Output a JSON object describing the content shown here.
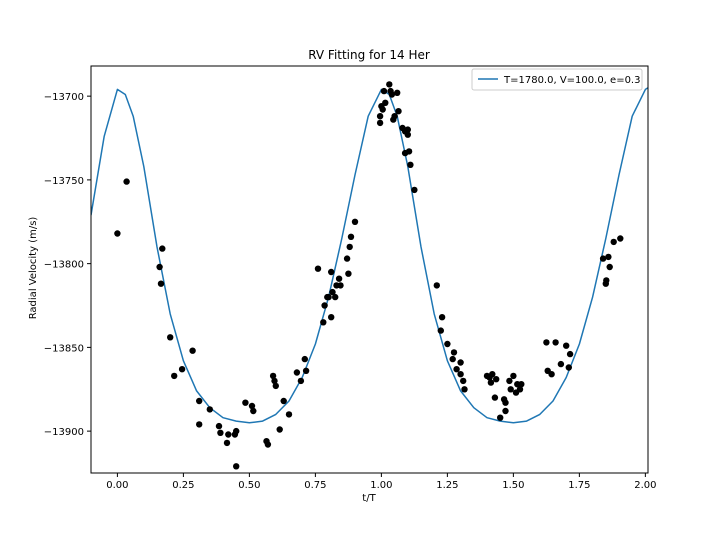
{
  "chart_data": {
    "type": "scatter",
    "title": "RV Fitting for 14 Her",
    "xlabel": "t/T",
    "ylabel": "Radial Velocity (m/s)",
    "xlim": [
      -0.1,
      2.01
    ],
    "ylim": [
      -13925,
      -13682
    ],
    "grid": false,
    "legend_position": "top-right",
    "x_ticks": [
      0.0,
      0.25,
      0.5,
      0.75,
      1.0,
      1.25,
      1.5,
      1.75,
      2.0
    ],
    "x_tick_labels": [
      "0.00",
      "0.25",
      "0.50",
      "0.75",
      "1.00",
      "1.25",
      "1.50",
      "1.75",
      "2.00"
    ],
    "y_ticks": [
      -13900,
      -13850,
      -13800,
      -13750,
      -13700
    ],
    "y_tick_labels": [
      "−13900",
      "−13850",
      "−13800",
      "−13750",
      "−13700"
    ],
    "fit_series": {
      "name": "T=1780.0, V=100.0, e=0.3",
      "color": "#1f77b4",
      "points": [
        [
          -0.1,
          -13771
        ],
        [
          -0.05,
          -13724
        ],
        [
          0.0,
          -13696
        ],
        [
          0.03,
          -13699
        ],
        [
          0.06,
          -13712
        ],
        [
          0.1,
          -13742
        ],
        [
          0.15,
          -13790
        ],
        [
          0.2,
          -13830
        ],
        [
          0.25,
          -13858
        ],
        [
          0.3,
          -13876
        ],
        [
          0.35,
          -13886
        ],
        [
          0.4,
          -13892
        ],
        [
          0.45,
          -13894
        ],
        [
          0.5,
          -13895
        ],
        [
          0.55,
          -13894
        ],
        [
          0.6,
          -13890
        ],
        [
          0.65,
          -13882
        ],
        [
          0.7,
          -13868
        ],
        [
          0.75,
          -13848
        ],
        [
          0.8,
          -13820
        ],
        [
          0.85,
          -13785
        ],
        [
          0.9,
          -13747
        ],
        [
          0.95,
          -13712
        ],
        [
          1.0,
          -13696
        ],
        [
          1.03,
          -13699
        ],
        [
          1.06,
          -13712
        ],
        [
          1.1,
          -13742
        ],
        [
          1.15,
          -13790
        ],
        [
          1.2,
          -13830
        ],
        [
          1.25,
          -13858
        ],
        [
          1.3,
          -13876
        ],
        [
          1.35,
          -13886
        ],
        [
          1.4,
          -13892
        ],
        [
          1.45,
          -13894
        ],
        [
          1.5,
          -13895
        ],
        [
          1.55,
          -13894
        ],
        [
          1.6,
          -13890
        ],
        [
          1.65,
          -13882
        ],
        [
          1.7,
          -13868
        ],
        [
          1.75,
          -13848
        ],
        [
          1.8,
          -13820
        ],
        [
          1.85,
          -13785
        ],
        [
          1.9,
          -13747
        ],
        [
          1.95,
          -13712
        ],
        [
          2.0,
          -13696
        ],
        [
          2.01,
          -13695
        ]
      ]
    },
    "observations": {
      "color": "#000000",
      "points": [
        [
          0.0,
          -13782
        ],
        [
          0.035,
          -13751
        ],
        [
          0.16,
          -13802
        ],
        [
          0.165,
          -13812
        ],
        [
          0.17,
          -13791
        ],
        [
          0.2,
          -13844
        ],
        [
          0.215,
          -13867
        ],
        [
          0.245,
          -13863
        ],
        [
          0.285,
          -13852
        ],
        [
          0.31,
          -13882
        ],
        [
          0.31,
          -13896
        ],
        [
          0.35,
          -13887
        ],
        [
          0.385,
          -13897
        ],
        [
          0.39,
          -13901
        ],
        [
          0.415,
          -13907
        ],
        [
          0.42,
          -13902
        ],
        [
          0.445,
          -13902
        ],
        [
          0.45,
          -13900
        ],
        [
          0.45,
          -13921
        ],
        [
          0.485,
          -13883
        ],
        [
          0.51,
          -13885
        ],
        [
          0.515,
          -13888
        ],
        [
          0.565,
          -13906
        ],
        [
          0.57,
          -13908
        ],
        [
          0.59,
          -13867
        ],
        [
          0.595,
          -13870
        ],
        [
          0.6,
          -13873
        ],
        [
          0.615,
          -13899
        ],
        [
          0.63,
          -13882
        ],
        [
          0.65,
          -13890
        ],
        [
          0.68,
          -13865
        ],
        [
          0.695,
          -13870
        ],
        [
          0.71,
          -13857
        ],
        [
          0.715,
          -13864
        ],
        [
          0.76,
          -13803
        ],
        [
          0.78,
          -13835
        ],
        [
          0.785,
          -13825
        ],
        [
          0.795,
          -13820
        ],
        [
          0.8,
          -13820
        ],
        [
          0.81,
          -13805
        ],
        [
          0.81,
          -13832
        ],
        [
          0.815,
          -13817
        ],
        [
          0.825,
          -13820
        ],
        [
          0.83,
          -13813
        ],
        [
          0.84,
          -13809
        ],
        [
          0.845,
          -13813
        ],
        [
          0.87,
          -13797
        ],
        [
          0.875,
          -13806
        ],
        [
          0.88,
          -13790
        ],
        [
          0.885,
          -13784
        ],
        [
          0.9,
          -13775
        ],
        [
          0.995,
          -13716
        ],
        [
          0.995,
          -13712
        ],
        [
          1.0,
          -13706
        ],
        [
          1.005,
          -13708
        ],
        [
          1.01,
          -13697
        ],
        [
          1.015,
          -13704
        ],
        [
          1.03,
          -13693
        ],
        [
          1.035,
          -13697
        ],
        [
          1.04,
          -13699
        ],
        [
          1.045,
          -13714
        ],
        [
          1.05,
          -13712
        ],
        [
          1.06,
          -13698
        ],
        [
          1.065,
          -13709
        ],
        [
          1.08,
          -13719
        ],
        [
          1.09,
          -13721
        ],
        [
          1.09,
          -13734
        ],
        [
          1.1,
          -13720
        ],
        [
          1.1,
          -13723
        ],
        [
          1.105,
          -13733
        ],
        [
          1.11,
          -13741
        ],
        [
          1.125,
          -13756
        ],
        [
          1.21,
          -13813
        ],
        [
          1.225,
          -13840
        ],
        [
          1.23,
          -13832
        ],
        [
          1.25,
          -13848
        ],
        [
          1.27,
          -13857
        ],
        [
          1.275,
          -13853
        ],
        [
          1.285,
          -13863
        ],
        [
          1.3,
          -13859
        ],
        [
          1.3,
          -13866
        ],
        [
          1.31,
          -13870
        ],
        [
          1.315,
          -13875
        ],
        [
          1.4,
          -13867
        ],
        [
          1.41,
          -13868
        ],
        [
          1.415,
          -13871
        ],
        [
          1.42,
          -13866
        ],
        [
          1.43,
          -13880
        ],
        [
          1.435,
          -13869
        ],
        [
          1.45,
          -13892
        ],
        [
          1.465,
          -13881
        ],
        [
          1.47,
          -13888
        ],
        [
          1.47,
          -13883
        ],
        [
          1.485,
          -13870
        ],
        [
          1.49,
          -13875
        ],
        [
          1.5,
          -13867
        ],
        [
          1.51,
          -13877
        ],
        [
          1.515,
          -13872
        ],
        [
          1.525,
          -13875
        ],
        [
          1.53,
          -13872
        ],
        [
          1.625,
          -13847
        ],
        [
          1.63,
          -13864
        ],
        [
          1.645,
          -13866
        ],
        [
          1.66,
          -13847
        ],
        [
          1.68,
          -13860
        ],
        [
          1.7,
          -13849
        ],
        [
          1.71,
          -13862
        ],
        [
          1.715,
          -13854
        ],
        [
          1.84,
          -13797
        ],
        [
          1.85,
          -13812
        ],
        [
          1.852,
          -13810
        ],
        [
          1.86,
          -13796
        ],
        [
          1.865,
          -13802
        ],
        [
          1.88,
          -13787
        ],
        [
          1.905,
          -13785
        ]
      ]
    }
  }
}
